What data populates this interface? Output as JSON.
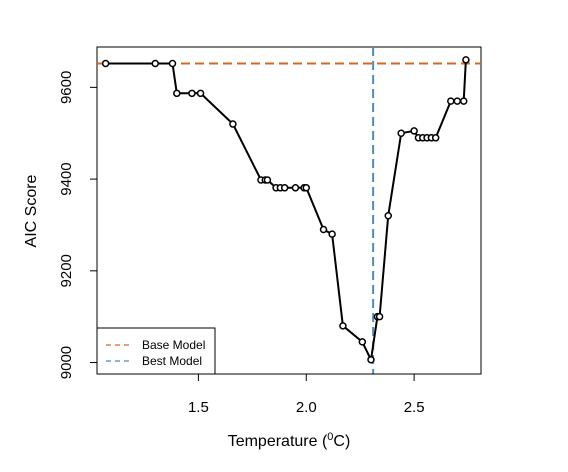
{
  "chart_data": {
    "type": "line",
    "title": "",
    "xlabel_main": "Temperature (",
    "xlabel_sup": "0",
    "xlabel_tail": "C)",
    "ylabel": "AIC Score",
    "xlim": [
      1.03,
      2.81
    ],
    "ylim": [
      8975,
      9688
    ],
    "x_ticks": [
      1.5,
      2.0,
      2.5
    ],
    "x_tick_labels": [
      "1.5",
      "2.0",
      "2.5"
    ],
    "y_ticks": [
      9000,
      9200,
      9400,
      9600
    ],
    "y_tick_labels": [
      "9000",
      "9200",
      "9400",
      "9600"
    ],
    "series": [
      {
        "x": [
          1.07,
          1.3,
          1.38,
          1.4,
          1.47,
          1.51,
          1.66,
          1.79,
          1.81,
          1.82,
          1.86,
          1.88,
          1.9,
          1.95,
          1.99,
          2.0,
          2.08,
          2.12,
          2.17,
          2.26,
          2.3,
          2.33,
          2.34,
          2.38,
          2.44,
          2.5,
          2.52,
          2.54,
          2.56,
          2.58,
          2.6,
          2.67,
          2.7,
          2.73,
          2.74
        ],
        "y": [
          9652,
          9652,
          9652,
          9587,
          9587,
          9587,
          9520,
          9398,
          9398,
          9398,
          9381,
          9381,
          9381,
          9381,
          9381,
          9381,
          9290,
          9280,
          9080,
          9045,
          9006,
          9100,
          9100,
          9320,
          9500,
          9505,
          9490,
          9490,
          9490,
          9490,
          9490,
          9570,
          9570,
          9570,
          9660
        ]
      }
    ],
    "reference_lines": {
      "base_model_y": 9652,
      "best_model_x": 2.31
    },
    "legend": {
      "position": "bottom-left",
      "items": [
        {
          "label": "Base Model",
          "color": "#d2691e"
        },
        {
          "label": "Best Model",
          "color": "#4a8db7"
        }
      ]
    },
    "colors": {
      "line": "#000000",
      "base_model": "#d2691e",
      "best_model": "#4a8db7"
    }
  }
}
